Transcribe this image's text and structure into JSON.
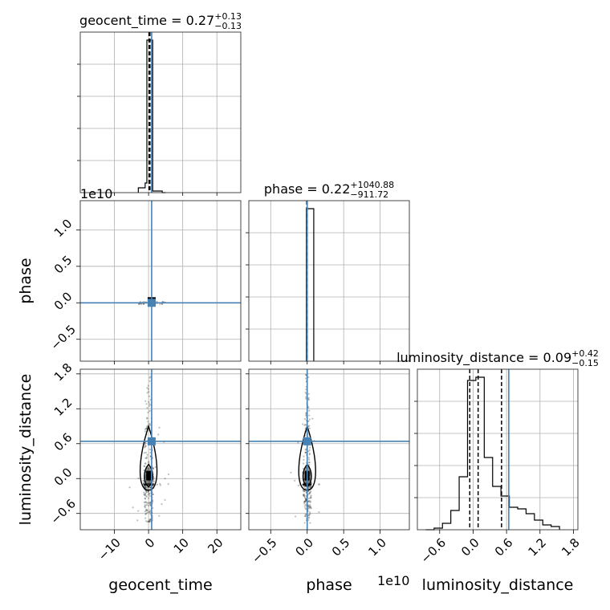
{
  "chart_data": {
    "type": "corner",
    "parameters": [
      "geocent_time",
      "phase",
      "luminosity_distance"
    ],
    "truths": {
      "geocent_time": 0.9,
      "phase": 0.0,
      "luminosity_distance": 0.64
    },
    "accent_color": "#4682b4",
    "grid": true,
    "diagonal": [
      {
        "param": "geocent_time",
        "title": {
          "prefix": "geocent_time = ",
          "median": "0.27",
          "plus": "+0.13",
          "minus": "−0.13"
        },
        "xlim": [
          -20,
          27
        ],
        "bin_edges": [
          -3,
          -1,
          -0.5,
          0.3,
          1.2,
          4,
          5
        ],
        "counts": [
          0.03,
          0.06,
          0.95,
          0.95,
          0.01,
          0.0
        ],
        "quantile_lines": [
          0.14,
          0.27,
          0.4
        ],
        "truth": 0.9
      },
      {
        "param": "phase",
        "title": {
          "prefix": "phase = ",
          "median": "0.22",
          "plus": "+1040.88",
          "minus": "−911.72"
        },
        "xlim": [
          -0.8,
          1.4
        ],
        "bin_edges": [
          -0.01,
          0.0,
          0.09
        ],
        "counts": [
          0.95,
          0.95
        ],
        "quantile_lines": [
          -0.006,
          0.0,
          0.001
        ],
        "truth": 0.0,
        "offset": "1e10"
      },
      {
        "param": "luminosity_distance",
        "title": {
          "prefix": "luminosity_distance = ",
          "median": "0.09",
          "plus": "+0.42",
          "minus": "−0.15"
        },
        "xlim": [
          -1.0,
          1.88
        ],
        "bin_edges": [
          -0.85,
          -0.7,
          -0.55,
          -0.4,
          -0.25,
          -0.1,
          0.05,
          0.2,
          0.35,
          0.5,
          0.65,
          0.8,
          0.95,
          1.1,
          1.25,
          1.4,
          1.55
        ],
        "counts": [
          0.0,
          0.01,
          0.04,
          0.12,
          0.33,
          0.93,
          0.95,
          0.45,
          0.27,
          0.21,
          0.14,
          0.13,
          0.1,
          0.06,
          0.03,
          0.02
        ],
        "quantile_lines": [
          -0.06,
          0.09,
          0.51
        ],
        "truth": 0.64
      }
    ],
    "panels": [
      {
        "row": "phase",
        "col": "geocent_time",
        "xlim": [
          -20,
          27
        ],
        "ylim": [
          -0.8,
          1.4
        ],
        "truth": [
          0.9,
          0.0
        ]
      },
      {
        "row": "luminosity_distance",
        "col": "geocent_time",
        "xlim": [
          -20,
          27
        ],
        "ylim": [
          -0.88,
          1.88
        ],
        "truth": [
          0.9,
          0.64
        ]
      },
      {
        "row": "luminosity_distance",
        "col": "phase",
        "xlim": [
          -0.8,
          1.4
        ],
        "ylim": [
          -0.88,
          1.88
        ],
        "truth": [
          0.0,
          0.64
        ]
      }
    ],
    "axes": {
      "x_labels": [
        "geocent_time",
        "phase",
        "luminosity_distance"
      ],
      "y_labels": [
        "phase",
        "luminosity_distance"
      ],
      "ticks": {
        "geocent_time": [
          "−10",
          "0",
          "10",
          "20"
        ],
        "phase": [
          "−0.5",
          "0.0",
          "0.5",
          "1.0"
        ],
        "luminosity_distance": [
          "−0.6",
          "0.0",
          "0.6",
          "1.2",
          "1.8"
        ]
      },
      "tick_values": {
        "geocent_time": [
          -10,
          0,
          10,
          20
        ],
        "phase": [
          -0.5,
          0.0,
          0.5,
          1.0
        ],
        "luminosity_distance": [
          -0.6,
          0.0,
          0.6,
          1.2,
          1.8
        ]
      },
      "offset_label": "1e10"
    }
  }
}
